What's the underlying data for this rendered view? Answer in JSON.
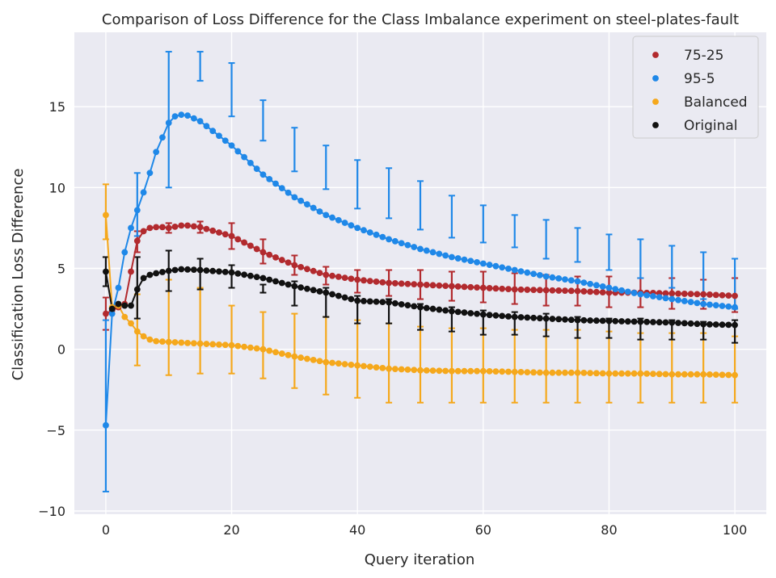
{
  "chart_data": {
    "type": "line",
    "title": "Comparison of Loss Difference for the Class Imbalance experiment on steel-plates-fault",
    "xlabel": "Query iteration",
    "ylabel": "Classification Loss Difference",
    "xlim": [
      -5,
      105
    ],
    "ylim": [
      -10.2,
      19.6
    ],
    "xticks": [
      0,
      20,
      40,
      60,
      80,
      100
    ],
    "xtick_labels": [
      "0",
      "20",
      "40",
      "60",
      "80",
      "100"
    ],
    "yticks": [
      -10,
      -5,
      0,
      5,
      10,
      15
    ],
    "ytick_labels": [
      "−10",
      "−5",
      "0",
      "5",
      "10",
      "15"
    ],
    "grid": true,
    "legend_position": "top-right",
    "background": "#eaeaf2",
    "series": [
      {
        "name": "75-25",
        "color": "#b22a2e",
        "key_points": [
          [
            0,
            2.2
          ],
          [
            1,
            2.4
          ],
          [
            2,
            2.6
          ],
          [
            3,
            2.8
          ],
          [
            4,
            4.8
          ],
          [
            5,
            6.7
          ],
          [
            6,
            7.3
          ],
          [
            7,
            7.5
          ],
          [
            8,
            7.55
          ],
          [
            9,
            7.55
          ],
          [
            10,
            7.5
          ],
          [
            12,
            7.65
          ],
          [
            13,
            7.65
          ],
          [
            15,
            7.55
          ],
          [
            20,
            7.0
          ],
          [
            25,
            6.0
          ],
          [
            30,
            5.2
          ],
          [
            35,
            4.6
          ],
          [
            40,
            4.3
          ],
          [
            45,
            4.1
          ],
          [
            50,
            4.0
          ],
          [
            55,
            3.9
          ],
          [
            60,
            3.8
          ],
          [
            65,
            3.7
          ],
          [
            70,
            3.65
          ],
          [
            75,
            3.6
          ],
          [
            80,
            3.5
          ],
          [
            85,
            3.5
          ],
          [
            90,
            3.45
          ],
          [
            95,
            3.4
          ],
          [
            100,
            3.3
          ]
        ],
        "errorbars": [
          {
            "x": 0,
            "low": 1.2,
            "high": 3.2
          },
          {
            "x": 5,
            "low": 6.0,
            "high": 7.3
          },
          {
            "x": 10,
            "low": 7.2,
            "high": 7.8
          },
          {
            "x": 15,
            "low": 7.2,
            "high": 7.9
          },
          {
            "x": 20,
            "low": 6.2,
            "high": 7.8
          },
          {
            "x": 25,
            "low": 5.3,
            "high": 6.8
          },
          {
            "x": 30,
            "low": 4.6,
            "high": 5.8
          },
          {
            "x": 35,
            "low": 4.0,
            "high": 5.1
          },
          {
            "x": 40,
            "low": 3.5,
            "high": 4.9
          },
          {
            "x": 45,
            "low": 3.3,
            "high": 4.9
          },
          {
            "x": 50,
            "low": 3.1,
            "high": 4.9
          },
          {
            "x": 55,
            "low": 3.0,
            "high": 4.8
          },
          {
            "x": 60,
            "low": 2.9,
            "high": 4.8
          },
          {
            "x": 65,
            "low": 2.8,
            "high": 4.7
          },
          {
            "x": 70,
            "low": 2.7,
            "high": 4.6
          },
          {
            "x": 75,
            "low": 2.7,
            "high": 4.5
          },
          {
            "x": 80,
            "low": 2.6,
            "high": 4.5
          },
          {
            "x": 85,
            "low": 2.6,
            "high": 4.4
          },
          {
            "x": 90,
            "low": 2.5,
            "high": 4.4
          },
          {
            "x": 95,
            "low": 2.5,
            "high": 4.3
          },
          {
            "x": 100,
            "low": 2.3,
            "high": 4.4
          }
        ]
      },
      {
        "name": "95-5",
        "color": "#1f88e8",
        "key_points": [
          [
            0,
            -4.7
          ],
          [
            1,
            2.2
          ],
          [
            2,
            3.8
          ],
          [
            3,
            6.0
          ],
          [
            4,
            7.5
          ],
          [
            5,
            8.6
          ],
          [
            6,
            9.7
          ],
          [
            7,
            10.9
          ],
          [
            8,
            12.2
          ],
          [
            9,
            13.1
          ],
          [
            10,
            14.0
          ],
          [
            11,
            14.4
          ],
          [
            12,
            14.5
          ],
          [
            13,
            14.45
          ],
          [
            15,
            14.1
          ],
          [
            20,
            12.6
          ],
          [
            25,
            10.8
          ],
          [
            30,
            9.4
          ],
          [
            35,
            8.3
          ],
          [
            40,
            7.5
          ],
          [
            45,
            6.8
          ],
          [
            50,
            6.2
          ],
          [
            55,
            5.7
          ],
          [
            60,
            5.3
          ],
          [
            65,
            4.9
          ],
          [
            70,
            4.5
          ],
          [
            75,
            4.2
          ],
          [
            80,
            3.8
          ],
          [
            85,
            3.4
          ],
          [
            90,
            3.1
          ],
          [
            95,
            2.8
          ],
          [
            100,
            2.6
          ]
        ],
        "errorbars": [
          {
            "x": 0,
            "low": -8.8,
            "high": 1.8
          },
          {
            "x": 5,
            "low": 7.0,
            "high": 10.9
          },
          {
            "x": 10,
            "low": 10.0,
            "high": 18.4
          },
          {
            "x": 15,
            "low": 16.6,
            "high": 18.4
          },
          {
            "x": 20,
            "low": 14.4,
            "high": 17.7
          },
          {
            "x": 25,
            "low": 12.9,
            "high": 15.4
          },
          {
            "x": 30,
            "low": 11.0,
            "high": 13.7
          },
          {
            "x": 35,
            "low": 9.9,
            "high": 12.6
          },
          {
            "x": 40,
            "low": 8.7,
            "high": 11.7
          },
          {
            "x": 45,
            "low": 8.1,
            "high": 11.2
          },
          {
            "x": 50,
            "low": 7.4,
            "high": 10.4
          },
          {
            "x": 55,
            "low": 6.9,
            "high": 9.5
          },
          {
            "x": 60,
            "low": 6.6,
            "high": 8.9
          },
          {
            "x": 65,
            "low": 6.3,
            "high": 8.3
          },
          {
            "x": 70,
            "low": 5.6,
            "high": 8.0
          },
          {
            "x": 75,
            "low": 5.4,
            "high": 7.5
          },
          {
            "x": 80,
            "low": 4.9,
            "high": 7.1
          },
          {
            "x": 85,
            "low": 4.4,
            "high": 6.8
          },
          {
            "x": 90,
            "low": 3.8,
            "high": 6.4
          },
          {
            "x": 95,
            "low": 3.1,
            "high": 6.0
          },
          {
            "x": 100,
            "low": 2.5,
            "high": 5.6
          }
        ]
      },
      {
        "name": "Balanced",
        "color": "#f5a81c",
        "key_points": [
          [
            0,
            8.3
          ],
          [
            1,
            2.6
          ],
          [
            2,
            2.7
          ],
          [
            3,
            2.0
          ],
          [
            4,
            1.6
          ],
          [
            5,
            1.1
          ],
          [
            6,
            0.8
          ],
          [
            7,
            0.6
          ],
          [
            8,
            0.5
          ],
          [
            10,
            0.45
          ],
          [
            15,
            0.35
          ],
          [
            20,
            0.25
          ],
          [
            25,
            0.0
          ],
          [
            30,
            -0.45
          ],
          [
            35,
            -0.8
          ],
          [
            40,
            -1.0
          ],
          [
            45,
            -1.2
          ],
          [
            50,
            -1.3
          ],
          [
            55,
            -1.35
          ],
          [
            60,
            -1.35
          ],
          [
            65,
            -1.4
          ],
          [
            70,
            -1.45
          ],
          [
            75,
            -1.45
          ],
          [
            80,
            -1.5
          ],
          [
            85,
            -1.5
          ],
          [
            90,
            -1.55
          ],
          [
            95,
            -1.55
          ],
          [
            100,
            -1.6
          ]
        ],
        "errorbars": [
          {
            "x": 0,
            "low": 6.8,
            "high": 10.2
          },
          {
            "x": 5,
            "low": -1.0,
            "high": 3.4
          },
          {
            "x": 10,
            "low": -1.6,
            "high": 4.3
          },
          {
            "x": 15,
            "low": -1.5,
            "high": 3.8
          },
          {
            "x": 20,
            "low": -1.5,
            "high": 2.7
          },
          {
            "x": 25,
            "low": -1.8,
            "high": 2.3
          },
          {
            "x": 30,
            "low": -2.4,
            "high": 2.2
          },
          {
            "x": 35,
            "low": -2.8,
            "high": 2.0
          },
          {
            "x": 40,
            "low": -3.0,
            "high": 1.8
          },
          {
            "x": 45,
            "low": -3.3,
            "high": 1.6
          },
          {
            "x": 50,
            "low": -3.3,
            "high": 1.4
          },
          {
            "x": 55,
            "low": -3.3,
            "high": 1.3
          },
          {
            "x": 60,
            "low": -3.3,
            "high": 1.3
          },
          {
            "x": 65,
            "low": -3.3,
            "high": 1.2
          },
          {
            "x": 70,
            "low": -3.3,
            "high": 1.2
          },
          {
            "x": 75,
            "low": -3.3,
            "high": 1.2
          },
          {
            "x": 80,
            "low": -3.3,
            "high": 1.1
          },
          {
            "x": 85,
            "low": -3.3,
            "high": 1.0
          },
          {
            "x": 90,
            "low": -3.3,
            "high": 1.0
          },
          {
            "x": 95,
            "low": -3.3,
            "high": 1.0
          },
          {
            "x": 100,
            "low": -3.3,
            "high": 0.8
          }
        ]
      },
      {
        "name": "Original",
        "color": "#111111",
        "key_points": [
          [
            0,
            4.8
          ],
          [
            1,
            2.5
          ],
          [
            2,
            2.8
          ],
          [
            3,
            2.7
          ],
          [
            4,
            2.7
          ],
          [
            5,
            3.7
          ],
          [
            6,
            4.4
          ],
          [
            7,
            4.6
          ],
          [
            8,
            4.7
          ],
          [
            10,
            4.85
          ],
          [
            12,
            4.95
          ],
          [
            15,
            4.9
          ],
          [
            20,
            4.75
          ],
          [
            25,
            4.4
          ],
          [
            30,
            3.9
          ],
          [
            35,
            3.5
          ],
          [
            40,
            3.0
          ],
          [
            45,
            2.9
          ],
          [
            50,
            2.6
          ],
          [
            55,
            2.35
          ],
          [
            60,
            2.15
          ],
          [
            65,
            2.0
          ],
          [
            70,
            1.9
          ],
          [
            75,
            1.8
          ],
          [
            80,
            1.75
          ],
          [
            85,
            1.7
          ],
          [
            90,
            1.65
          ],
          [
            95,
            1.55
          ],
          [
            100,
            1.5
          ]
        ],
        "errorbars": [
          {
            "x": 0,
            "low": 3.9,
            "high": 5.7
          },
          {
            "x": 5,
            "low": 1.9,
            "high": 5.7
          },
          {
            "x": 10,
            "low": 3.6,
            "high": 6.1
          },
          {
            "x": 15,
            "low": 3.7,
            "high": 5.6
          },
          {
            "x": 20,
            "low": 3.8,
            "high": 5.2
          },
          {
            "x": 25,
            "low": 3.5,
            "high": 4.0
          },
          {
            "x": 30,
            "low": 2.7,
            "high": 4.2
          },
          {
            "x": 35,
            "low": 2.0,
            "high": 3.8
          },
          {
            "x": 40,
            "low": 1.6,
            "high": 3.3
          },
          {
            "x": 45,
            "low": 1.6,
            "high": 3.1
          },
          {
            "x": 50,
            "low": 1.2,
            "high": 2.8
          },
          {
            "x": 55,
            "low": 1.1,
            "high": 2.6
          },
          {
            "x": 60,
            "low": 0.9,
            "high": 2.4
          },
          {
            "x": 65,
            "low": 0.9,
            "high": 2.3
          },
          {
            "x": 70,
            "low": 0.8,
            "high": 2.2
          },
          {
            "x": 75,
            "low": 0.7,
            "high": 2.0
          },
          {
            "x": 80,
            "low": 0.7,
            "high": 1.9
          },
          {
            "x": 85,
            "low": 0.6,
            "high": 1.9
          },
          {
            "x": 90,
            "low": 0.6,
            "high": 1.8
          },
          {
            "x": 95,
            "low": 0.6,
            "high": 1.7
          },
          {
            "x": 100,
            "low": 0.4,
            "high": 1.8
          }
        ]
      }
    ]
  }
}
